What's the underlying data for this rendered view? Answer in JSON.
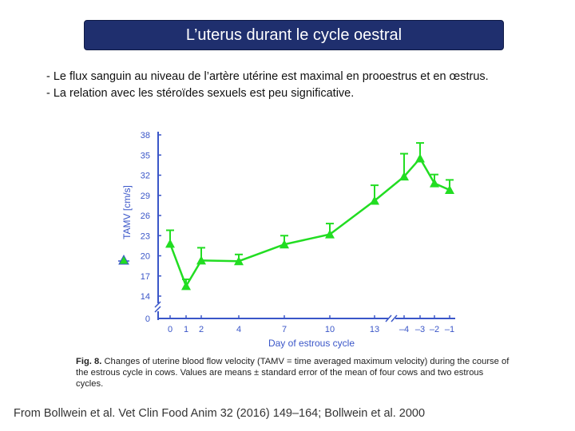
{
  "slide": {
    "title": "L’uterus durant le cycle oestral",
    "bullets": [
      "- Le flux sanguin au niveau de l’artère utérine est maximal en prooestrus et en œstrus.",
      "- La relation avec les stéroïdes sexuels est peu significative."
    ],
    "caption_label": "Fig. 8.",
    "caption_text": "Changes of uterine blood flow velocity (TAMV = time averaged maximum velocity) during the course of the estrous cycle in cows. Values are means ± standard error of the mean of four cows and two estrous cycles.",
    "source": "From Bollwein et al. Vet Clin Food Anim 32 (2016) 149–164; Bollwein et al. 2000"
  },
  "colors": {
    "title_bg": "#1f2f6e",
    "axis": "#3a56c8",
    "series": "#22dd22"
  },
  "chart_data": {
    "type": "line",
    "xlabel": "Day of estrous cycle",
    "ylabel": "TAMV [cm/s]",
    "y_ticks": [
      "0",
      "14",
      "17",
      "20",
      "23",
      "26",
      "29",
      "32",
      "35",
      "38"
    ],
    "ylim": [
      14,
      38
    ],
    "y_axis_break": true,
    "x_axis_break": true,
    "x_ticks": [
      "0",
      "1",
      "2",
      "4",
      "7",
      "10",
      "13",
      "–4",
      "–3",
      "–2",
      "–1"
    ],
    "grid": false,
    "legend": "marker symbol beside y-axis label",
    "series": [
      {
        "marker": "triangle",
        "points": [
          {
            "x": "0",
            "y": 21.8,
            "err": 2.0
          },
          {
            "x": "1",
            "y": 15.5,
            "err": 1.0
          },
          {
            "x": "2",
            "y": 19.3,
            "err": 1.9
          },
          {
            "x": "4",
            "y": 19.2,
            "err": 1.0
          },
          {
            "x": "7",
            "y": 21.7,
            "err": 1.3
          },
          {
            "x": "10",
            "y": 23.2,
            "err": 1.6
          },
          {
            "x": "13",
            "y": 28.2,
            "err": 2.3
          },
          {
            "x": "–4",
            "y": 31.8,
            "err": 3.4
          },
          {
            "x": "–3",
            "y": 34.5,
            "err": 2.3
          },
          {
            "x": "–2",
            "y": 30.8,
            "err": 1.3
          },
          {
            "x": "–1",
            "y": 29.8,
            "err": 1.5
          }
        ]
      }
    ]
  }
}
